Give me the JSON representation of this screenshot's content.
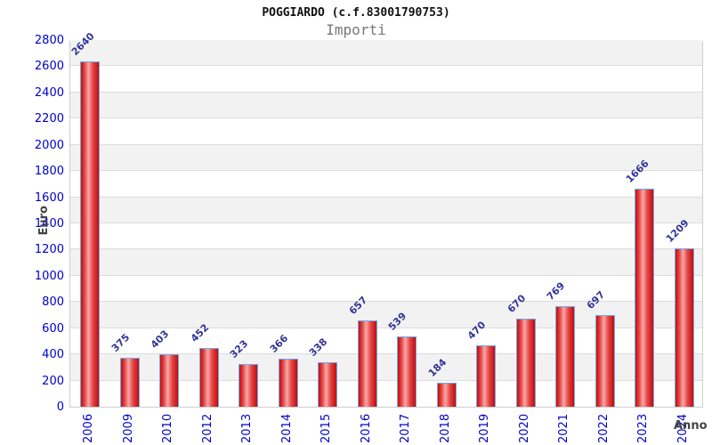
{
  "chart_data": {
    "type": "bar",
    "title": "POGGIARDO (c.f.83001790753)",
    "subtitle": "Importi",
    "xlabel": "Anno",
    "ylabel": "Euro",
    "categories": [
      "2006",
      "2009",
      "2010",
      "2012",
      "2013",
      "2014",
      "2015",
      "2016",
      "2017",
      "2018",
      "2019",
      "2020",
      "2021",
      "2022",
      "2023",
      "2024"
    ],
    "values": [
      2640,
      375,
      403,
      452,
      323,
      366,
      338,
      657,
      539,
      184,
      470,
      670,
      769,
      697,
      1666,
      1209
    ],
    "ylim": [
      0,
      2800
    ],
    "ytick_step": 200,
    "grid": "horizontal-bands",
    "legend": "none",
    "colors": {
      "bar_fill_edge": "#c20d0d",
      "bar_fill_center": "#f8a8a8",
      "bar_border": "#6aaef0",
      "axis_tick_label": "#0000cc",
      "value_label": "#333399",
      "axis_title": "#444444",
      "band_gray": "#f2f2f2",
      "band_white": "#ffffff",
      "grid_line": "#dcdcdc",
      "title": "#111111",
      "subtitle": "#777777"
    }
  }
}
